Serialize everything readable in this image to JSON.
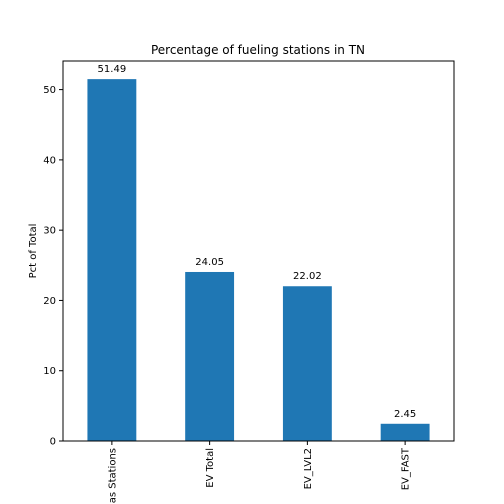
{
  "chart_data": {
    "type": "bar",
    "title": "Percentage of fueling stations in TN",
    "xlabel": "",
    "ylabel": "Pct of Total",
    "categories": [
      "Gas Stations",
      "EV Total",
      "EV_LVL2",
      "EV_FAST"
    ],
    "values": [
      51.49,
      24.05,
      22.02,
      2.45
    ],
    "data_labels": [
      "51.49",
      "24.05",
      "22.02",
      "2.45"
    ],
    "ylim": [
      0,
      54.07
    ],
    "yticks": [
      0,
      10,
      20,
      30,
      40,
      50
    ],
    "ytick_labels": [
      "0",
      "10",
      "20",
      "30",
      "40",
      "50"
    ],
    "grid": false,
    "legend": "none",
    "bar_color": "#1f77b4"
  }
}
